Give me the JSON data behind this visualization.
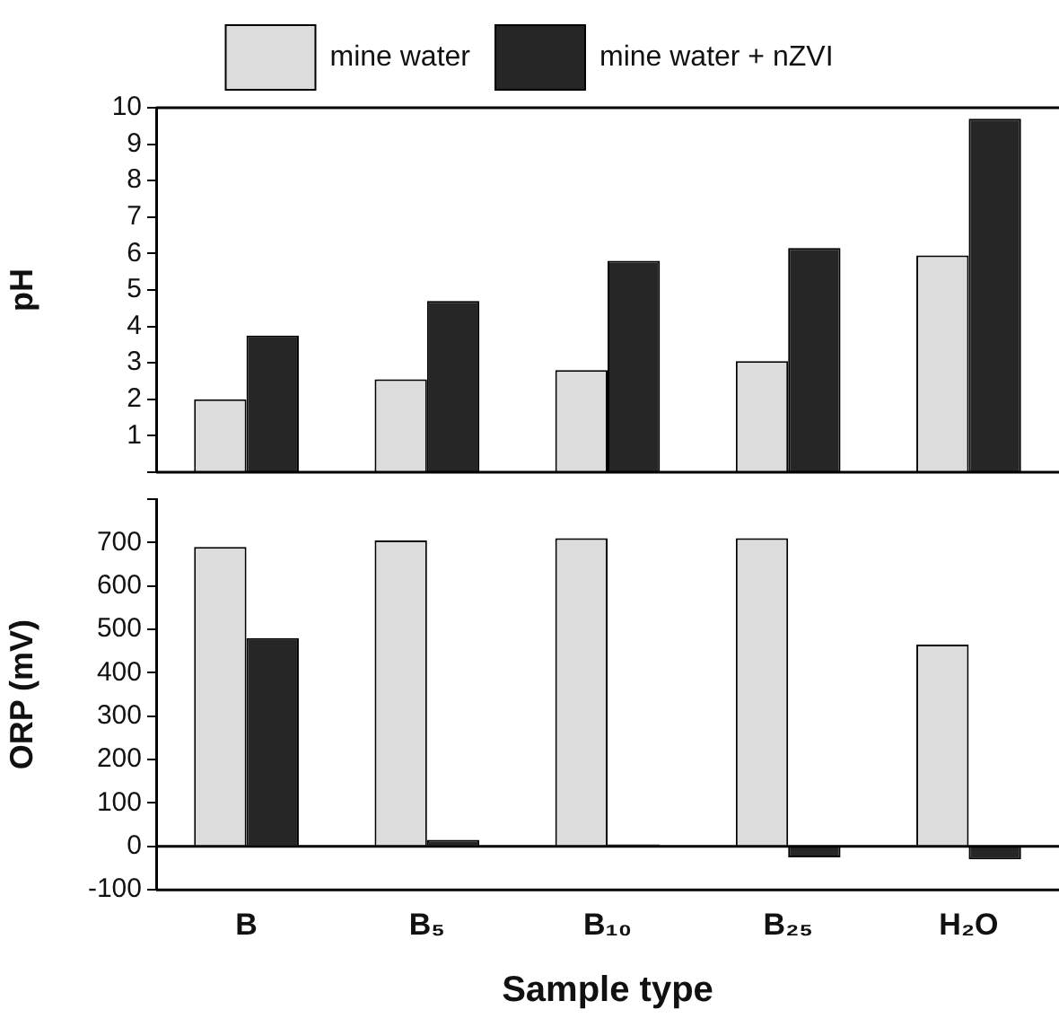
{
  "chart_data": [
    {
      "type": "bar",
      "ylabel": "pH",
      "categories": [
        null,
        null,
        null,
        null,
        null
      ],
      "ylim": [
        0,
        10
      ],
      "yticks": [
        {
          "value": 0,
          "label": null
        },
        1,
        2,
        3,
        4,
        5,
        6,
        7,
        8,
        9,
        10
      ],
      "tick_labels": "y",
      "legend": "top",
      "series": [
        {
          "name": "mine water",
          "color": "#dcdcdc",
          "values": [
            2.0,
            2.55,
            2.8,
            3.05,
            5.95
          ]
        },
        {
          "name": "mine water + nZVI",
          "color": "#262626",
          "values": [
            3.75,
            4.7,
            5.8,
            6.15,
            9.7
          ]
        }
      ]
    },
    {
      "type": "bar",
      "ylabel": "ORP (mV)",
      "xlabel": "Sample type",
      "categories": [
        "B",
        "B₅",
        "B₁₀",
        "B₂₅",
        "H₂O"
      ],
      "ylim": [
        -100,
        800
      ],
      "yticks": [
        -100,
        0,
        100,
        200,
        300,
        400,
        500,
        600,
        700,
        {
          "value": 800,
          "label": null
        }
      ],
      "series": [
        {
          "color": "#dcdcdc",
          "values": [
            690,
            705,
            710,
            710,
            465
          ]
        },
        {
          "color": "#262626",
          "values": [
            480,
            15,
            5,
            -25,
            -30
          ]
        }
      ]
    }
  ]
}
